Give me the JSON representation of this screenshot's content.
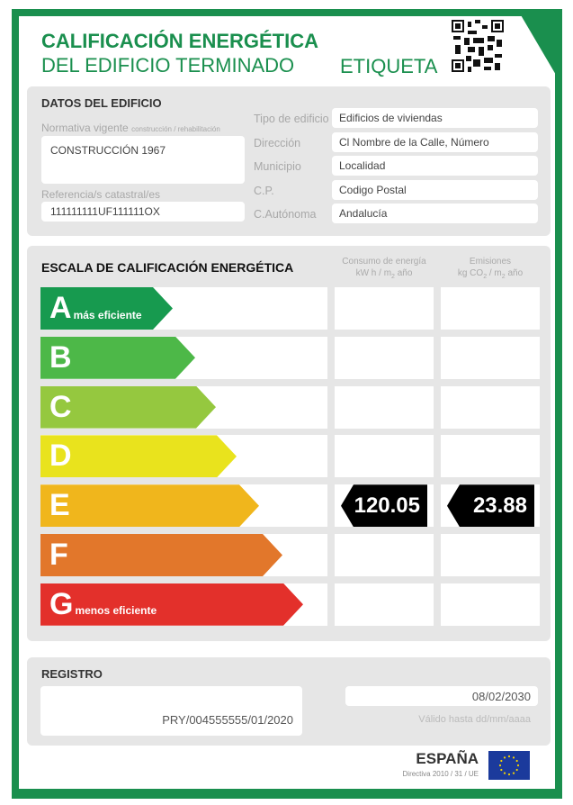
{
  "header": {
    "title_line1": "CALIFICACIÓN ENERGÉTICA",
    "title_line2": "DEL EDIFICIO TERMINADO",
    "label": "ETIQUETA",
    "qr_icon": "qr-code-icon",
    "accent_color": "#1a8f4e"
  },
  "datos": {
    "heading": "DATOS DEL EDIFICIO",
    "normativa_label": "Normativa vigente",
    "normativa_sub": "construcción / rehabilitación",
    "normativa_value": "CONSTRUCCIÓN 1967",
    "referencia_label": "Referencia/s catastral/es",
    "referencia_value": "111111111UF111111OX",
    "fields": [
      {
        "label": "Tipo de edificio",
        "value": "Edificios de viviendas"
      },
      {
        "label": "Dirección",
        "value": "Cl Nombre de la Calle, Número"
      },
      {
        "label": "Municipio",
        "value": "Localidad"
      },
      {
        "label": "C.P.",
        "value": "Codigo Postal"
      },
      {
        "label": "C.Autónoma",
        "value": "Andalucía"
      }
    ]
  },
  "escala": {
    "heading": "ESCALA DE CALIFICACIÓN ENERGÉTICA",
    "col1_title": "Consumo de energía",
    "col1_unit": "kW h / m",
    "col1_unit_sub": "2",
    "col1_unit_end": " año",
    "col2_title": "Emisiones",
    "col2_unit": "kg CO",
    "col2_unit_sub": "2",
    "col2_unit_mid": " / m",
    "col2_unit_sub2": "2",
    "col2_unit_end": " año",
    "ratings": [
      {
        "letter": "A",
        "sub": "más eficiente",
        "color": "#179a4f"
      },
      {
        "letter": "B",
        "sub": "",
        "color": "#4db848"
      },
      {
        "letter": "C",
        "sub": "",
        "color": "#95c83f"
      },
      {
        "letter": "D",
        "sub": "",
        "color": "#e9e31d"
      },
      {
        "letter": "E",
        "sub": "",
        "color": "#f0b61c"
      },
      {
        "letter": "F",
        "sub": "",
        "color": "#e2772b"
      },
      {
        "letter": "G",
        "sub": "menos eficiente",
        "color": "#e3302b"
      }
    ],
    "current_rating": "E",
    "consumo": "120.05",
    "emisiones": "23.88"
  },
  "registro": {
    "heading": "REGISTRO",
    "number": "PRY/004555555/01/2020",
    "valid_date": "08/02/2030",
    "valid_label": "Válido hasta dd/mm/aaaa"
  },
  "footer": {
    "country": "ESPAÑA",
    "directive": "Directiva 2010 / 31 / UE",
    "flag_icon": "eu-flag-icon"
  }
}
